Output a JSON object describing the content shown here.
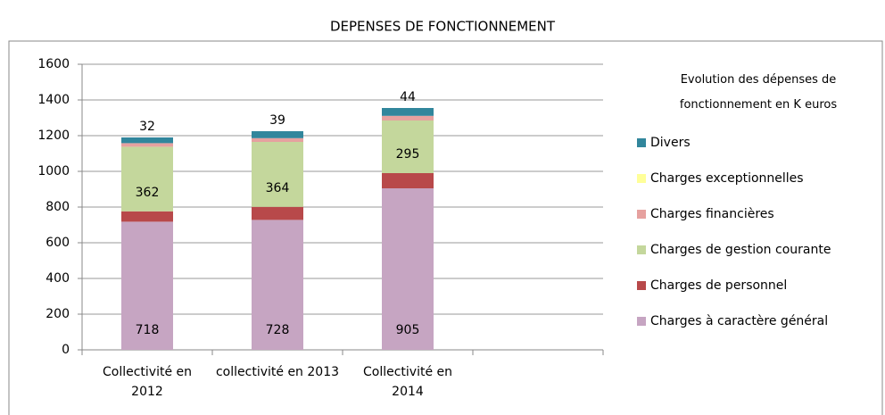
{
  "chart_data": {
    "type": "stacked_bar",
    "title": "DEPENSES DE FONCTIONNEMENT",
    "legend_title": "Evolution des dépenses de fonctionnement en K euros",
    "legend_position": "right",
    "grid": true,
    "categories": [
      "Collectivité en 2012",
      "collectivité en 2013",
      "Collectivité en 2014",
      null
    ],
    "ylim": [
      0,
      1600
    ],
    "yticks": [
      0,
      200,
      400,
      600,
      800,
      1000,
      1200,
      1400,
      1600
    ],
    "series": [
      {
        "name": "Charges à caractère général",
        "color": "#c6a5c2",
        "values": [
          718,
          728,
          905,
          null
        ],
        "data_labels": "bottom"
      },
      {
        "name": "Charges de personnel",
        "color": "#b8494a",
        "values": [
          58,
          73,
          85,
          null
        ],
        "data_labels": "top"
      },
      {
        "name": "Charges de gestion courante",
        "color": "#c4d79c",
        "values": [
          362,
          364,
          295,
          null
        ],
        "data_labels": "inside"
      },
      {
        "name": "Charges financières",
        "color": "#e6a19f",
        "values": [
          20,
          21,
          26,
          null
        ]
      },
      {
        "name": "Charges exceptionnelles",
        "color": "#ffff99",
        "values": [
          0,
          0,
          0,
          null
        ]
      },
      {
        "name": "Divers",
        "color": "#31869c",
        "values": [
          32,
          39,
          44,
          null
        ],
        "data_labels": "above"
      }
    ]
  }
}
